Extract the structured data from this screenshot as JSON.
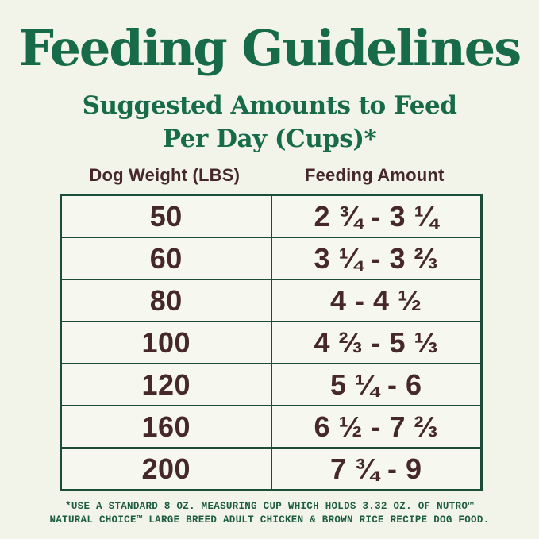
{
  "header": {
    "title": "Feeding Guidelines",
    "subtitle_line1": "Suggested Amounts to Feed",
    "subtitle_line2": "Per Day (Cups)*"
  },
  "table": {
    "headers": [
      "Dog Weight (LBS)",
      "Feeding Amount"
    ],
    "rows": [
      {
        "weight": "50",
        "amount": "2 ¾ - 3 ¼"
      },
      {
        "weight": "60",
        "amount": "3 ¼ - 3 ⅔"
      },
      {
        "weight": "80",
        "amount": "4 - 4 ½"
      },
      {
        "weight": "100",
        "amount": "4 ⅔ - 5 ⅓"
      },
      {
        "weight": "120",
        "amount": "5 ¼ - 6"
      },
      {
        "weight": "160",
        "amount": "6 ½ - 7 ⅔"
      },
      {
        "weight": "200",
        "amount": "7 ¾ - 9"
      }
    ]
  },
  "footnote": {
    "line1": "*USE A STANDARD 8 OZ. MEASURING CUP WHICH HOLDS 3.32 OZ. OF NUTRO™",
    "line2": "NATURAL CHOICE™ LARGE BREED ADULT CHICKEN & BROWN RICE RECIPE DOG FOOD."
  },
  "colors": {
    "background": "#f2f4ea",
    "title_green": "#176b48",
    "table_border_green": "#1b4d39",
    "cell_background": "#f6f8ef",
    "text_brown": "#46282b",
    "footnote_green": "#1d5c41"
  }
}
